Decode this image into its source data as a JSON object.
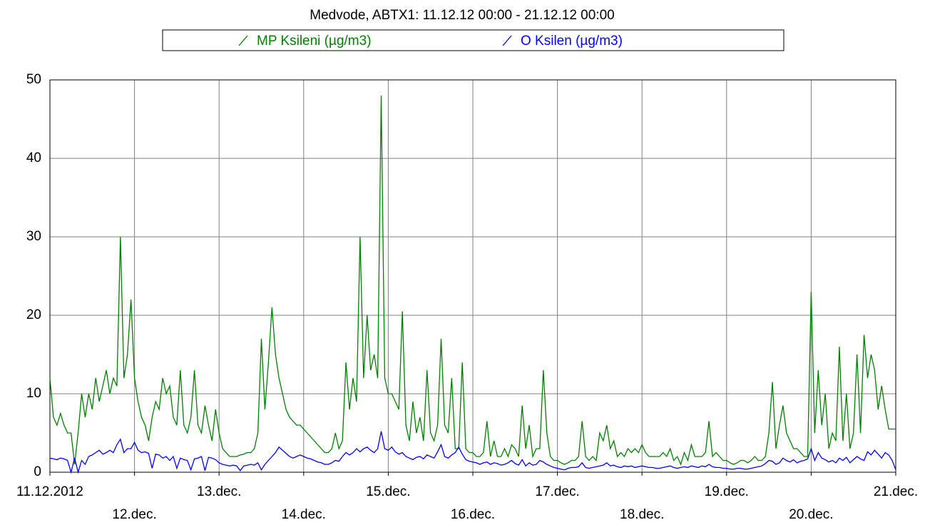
{
  "chart_data": {
    "type": "line",
    "title": "Medvode, ABTX1: 11.12.12 00:00 - 21.12.12 00:00",
    "x": [
      0,
      1,
      2,
      3,
      4,
      5,
      6,
      7,
      8,
      9,
      10,
      11,
      12,
      13,
      14,
      15,
      16,
      17,
      18,
      19,
      20,
      21,
      22,
      23,
      24,
      25,
      26,
      27,
      28,
      29,
      30,
      31,
      32,
      33,
      34,
      35,
      36,
      37,
      38,
      39,
      40,
      41,
      42,
      43,
      44,
      45,
      46,
      47,
      48,
      49,
      50,
      51,
      52,
      53,
      54,
      55,
      56,
      57,
      58,
      59,
      60,
      61,
      62,
      63,
      64,
      65,
      66,
      67,
      68,
      69,
      70,
      71,
      72,
      73,
      74,
      75,
      76,
      77,
      78,
      79,
      80,
      81,
      82,
      83,
      84,
      85,
      86,
      87,
      88,
      89,
      90,
      91,
      92,
      93,
      94,
      95,
      96,
      97,
      98,
      99,
      100,
      101,
      102,
      103,
      104,
      105,
      106,
      107,
      108,
      109,
      110,
      111,
      112,
      113,
      114,
      115,
      116,
      117,
      118,
      119,
      120,
      121,
      122,
      123,
      124,
      125,
      126,
      127,
      128,
      129,
      130,
      131,
      132,
      133,
      134,
      135,
      136,
      137,
      138,
      139,
      140,
      141,
      142,
      143,
      144,
      145,
      146,
      147,
      148,
      149,
      150,
      151,
      152,
      153,
      154,
      155,
      156,
      157,
      158,
      159,
      160,
      161,
      162,
      163,
      164,
      165,
      166,
      167,
      168,
      169,
      170,
      171,
      172,
      173,
      174,
      175,
      176,
      177,
      178,
      179,
      180,
      181,
      182,
      183,
      184,
      185,
      186,
      187,
      188,
      189,
      190,
      191,
      192,
      193,
      194,
      195,
      196,
      197,
      198,
      199,
      200,
      201,
      202,
      203,
      204,
      205,
      206,
      207,
      208,
      209,
      210,
      211,
      212,
      213,
      214,
      215,
      216,
      217,
      218,
      219,
      220,
      221,
      222,
      223,
      224,
      225,
      226,
      227,
      228,
      229,
      230,
      231,
      232,
      233,
      234,
      235,
      236,
      237,
      238,
      239,
      240
    ],
    "series": [
      {
        "name": "MP Ksileni (µg/m3)",
        "color": "#008000",
        "values": [
          12,
          7,
          6,
          7.5,
          6,
          5,
          5,
          1,
          5,
          10,
          7,
          10,
          8,
          12,
          9,
          11,
          13,
          10,
          12,
          11,
          30,
          12,
          15,
          22,
          12,
          9,
          7,
          6,
          4,
          7,
          9,
          8,
          12,
          10,
          11,
          7,
          6,
          13,
          6,
          5,
          7,
          13,
          6,
          5,
          8.5,
          6,
          4,
          8,
          5,
          3,
          2.5,
          2,
          2,
          2,
          2.2,
          2.3,
          2.5,
          2.5,
          3,
          5,
          17,
          8,
          14,
          21,
          15,
          12,
          10,
          8,
          7,
          6.5,
          6,
          6,
          5.5,
          5,
          4.5,
          4,
          3.5,
          3,
          2.5,
          2.5,
          3,
          5,
          3,
          4,
          14,
          8,
          12,
          9,
          30,
          12,
          20,
          13,
          15,
          12,
          48,
          12,
          10,
          10,
          9,
          8,
          20.5,
          6,
          4,
          9,
          5,
          7,
          4,
          13,
          5,
          4,
          6,
          17,
          6,
          5,
          12,
          3,
          3,
          14,
          3,
          2.5,
          2.5,
          2,
          2,
          2.5,
          6.5,
          2,
          4,
          2,
          2,
          3,
          2,
          3.5,
          3,
          2,
          8.5,
          3,
          6,
          2,
          3,
          3,
          13,
          5,
          2,
          1.5,
          1.5,
          1.2,
          1,
          1.2,
          1.5,
          1.5,
          2,
          6.5,
          2,
          1.5,
          2,
          1.5,
          5,
          4,
          6,
          3,
          4,
          2,
          2.5,
          2,
          3,
          2.5,
          3,
          2.5,
          3.5,
          2.5,
          2,
          2,
          2,
          2,
          2.5,
          2,
          3,
          1.5,
          2,
          1,
          2.5,
          1.5,
          3.5,
          2,
          2,
          2,
          2.5,
          6.5,
          2,
          2.5,
          2,
          1.5,
          1.5,
          1.2,
          1,
          1.2,
          1.5,
          1.5,
          1.2,
          1.5,
          2,
          1.5,
          1.5,
          2,
          5,
          11.5,
          3,
          6,
          8.5,
          5,
          4,
          3,
          3,
          2.5,
          2,
          2,
          23,
          5,
          13,
          6,
          10,
          3,
          5,
          4,
          16,
          4,
          10,
          3,
          5,
          15,
          5,
          17.5,
          12,
          15,
          13,
          8,
          11,
          8,
          5.5,
          5.5,
          5.5
        ]
      },
      {
        "name": "O Ksilen (µg/m3)",
        "color": "#0000ff",
        "values": [
          1.8,
          1.7,
          1.6,
          1.8,
          1.7,
          1.5,
          0,
          1.8,
          0,
          1.5,
          1,
          2,
          2.2,
          2.5,
          2.8,
          2.3,
          2.5,
          2.8,
          2.5,
          3.5,
          4.2,
          2.5,
          3,
          3,
          3.8,
          2.8,
          2.5,
          2.6,
          2.4,
          0.5,
          2.3,
          2.2,
          1.8,
          2,
          1.5,
          2,
          0.5,
          1.8,
          1.6,
          1.5,
          0.3,
          1.7,
          1.8,
          2,
          0.2,
          1.9,
          1.8,
          1.6,
          1.2,
          1,
          0.9,
          0.8,
          0.9,
          0.8,
          0.2,
          0.8,
          0.9,
          1,
          0.9,
          1.2,
          0.3,
          1,
          1.5,
          2,
          2.5,
          3.2,
          2.8,
          2.4,
          2,
          1.8,
          2,
          2.2,
          2,
          1.8,
          1.7,
          1.5,
          1.3,
          1.2,
          1,
          1,
          1.2,
          1.5,
          1.4,
          2,
          2.5,
          2.2,
          2.5,
          3,
          2.6,
          3,
          3.2,
          2.8,
          2.5,
          3,
          5.2,
          3,
          2.8,
          3.2,
          2.6,
          2.3,
          2.5,
          2,
          1.8,
          1.6,
          1.9,
          2,
          1.7,
          2.2,
          2,
          1.8,
          2.6,
          3.5,
          2,
          1.8,
          2.2,
          2.5,
          3.2,
          2.3,
          1.6,
          1.4,
          1.3,
          1.2,
          1,
          1.2,
          1.3,
          1,
          1.2,
          1.1,
          0.9,
          1,
          1.2,
          1.5,
          1.1,
          0.9,
          1.6,
          0.8,
          1.2,
          0.9,
          1,
          1.5,
          1.3,
          1,
          0.8,
          0.6,
          0.5,
          0.4,
          0.3,
          0.5,
          0.6,
          0.6,
          0.7,
          1.2,
          0.6,
          0.5,
          0.6,
          0.7,
          0.8,
          0.9,
          1.2,
          0.8,
          0.9,
          0.7,
          0.6,
          0.8,
          0.7,
          0.8,
          0.6,
          0.7,
          0.8,
          0.7,
          0.6,
          0.6,
          0.5,
          0.5,
          0.6,
          0.7,
          0.8,
          0.6,
          0.5,
          0.6,
          0.7,
          0.6,
          0.8,
          0.7,
          0.6,
          0.8,
          0.7,
          1,
          0.7,
          0.6,
          0.6,
          0.5,
          0.5,
          0.4,
          0.4,
          0.5,
          0.5,
          0.4,
          0.4,
          0.5,
          0.6,
          0.7,
          0.8,
          1.1,
          1.5,
          1.4,
          1,
          1.2,
          1.8,
          1.5,
          1.3,
          1.6,
          1.2,
          1.4,
          1.5,
          1.7,
          3,
          1.5,
          2.5,
          1.8,
          1.6,
          1.3,
          1.5,
          1.2,
          1.8,
          1.5,
          1.9,
          1.2,
          1.6,
          2,
          1.7,
          1.5,
          2.6,
          2.2,
          2.8,
          2.3,
          1.8,
          2.5,
          2.2,
          1.5,
          0.3
        ]
      }
    ],
    "xlim": [
      0,
      240
    ],
    "xticks": [
      {
        "value": 0,
        "label": "11.12.2012"
      },
      {
        "value": 24,
        "label": "12.dec."
      },
      {
        "value": 48,
        "label": "13.dec."
      },
      {
        "value": 72,
        "label": "14.dec."
      },
      {
        "value": 96,
        "label": "15.dec."
      },
      {
        "value": 120,
        "label": "16.dec."
      },
      {
        "value": 144,
        "label": "17.dec."
      },
      {
        "value": 168,
        "label": "18.dec."
      },
      {
        "value": 192,
        "label": "19.dec."
      },
      {
        "value": 216,
        "label": "20.dec."
      },
      {
        "value": 240,
        "label": "21.dec."
      }
    ],
    "ylim": [
      0,
      50
    ],
    "yticks": [
      0,
      10,
      20,
      30,
      40,
      50
    ],
    "grid": true
  }
}
